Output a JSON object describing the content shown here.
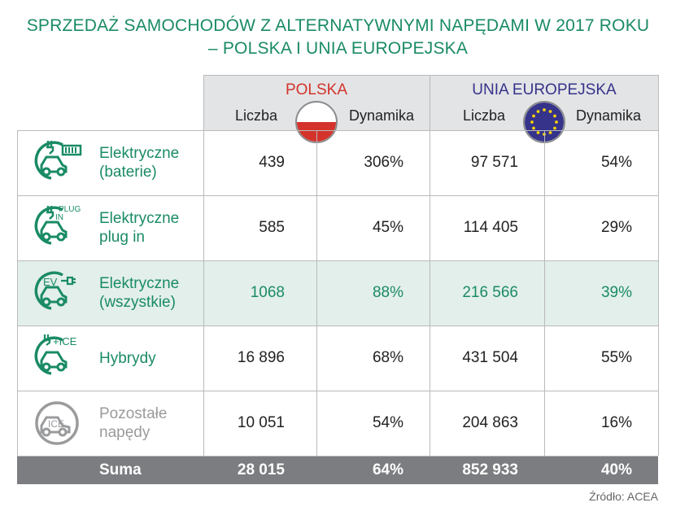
{
  "title_line1": "SPRZEDAŻ SAMOCHODÓW Z ALTERNATYWNYMI NAPĘDAMI W 2017 ROKU",
  "title_line2": "– POLSKA I UNIA EUROPEJSKA",
  "header": {
    "polska": "POLSKA",
    "ue": "UNIA EUROPEJSKA",
    "liczba": "Liczba",
    "dynamika": "Dynamika"
  },
  "icons": {
    "elektryczne_baterie": "car-battery-plug-icon",
    "elektryczne_plug_in": "car-plug-in-icon",
    "elektryczne_wszystkie": "car-ev-icon",
    "hybrydy": "car-plus-ice-icon",
    "pozostale": "car-ice-icon"
  },
  "badges": {
    "plug_in": "PLUG\nIN",
    "ev": "EV",
    "ice_plus": "+ICE",
    "ice": "ICE"
  },
  "colors": {
    "accent_green": "#1a8b64",
    "polska_red": "#d3332b",
    "eu_blue": "#35338a",
    "sum_grey": "#7c7d80",
    "highlight": "#e3efea"
  },
  "chart_data": {
    "type": "table",
    "title": "SPRZEDAŻ SAMOCHODÓW Z ALTERNATYWNYMI NAPĘDAMI W 2017 ROKU – POLSKA I UNIA EUROPEJSKA",
    "column_groups": [
      "POLSKA",
      "UNIA EUROPEJSKA"
    ],
    "columns": [
      "Liczba",
      "Dynamika",
      "Liczba",
      "Dynamika"
    ],
    "rows": [
      {
        "label_1": "Elektryczne",
        "label_2": "(baterie)",
        "pl_liczba": "439",
        "pl_dynamika": "306%",
        "ue_liczba": "97 571",
        "ue_dynamika": "54%"
      },
      {
        "label_1": "Elektryczne",
        "label_2": "plug in",
        "pl_liczba": "585",
        "pl_dynamika": "45%",
        "ue_liczba": "114 405",
        "ue_dynamika": "29%"
      },
      {
        "label_1": "Elektryczne",
        "label_2": "(wszystkie)",
        "pl_liczba": "1068",
        "pl_dynamika": "88%",
        "ue_liczba": "216 566",
        "ue_dynamika": "39%"
      },
      {
        "label_1": "Hybrydy",
        "label_2": "",
        "pl_liczba": "16 896",
        "pl_dynamika": "68%",
        "ue_liczba": "431 504",
        "ue_dynamika": "55%"
      },
      {
        "label_1": "Pozostałe",
        "label_2": "napędy",
        "pl_liczba": "10 051",
        "pl_dynamika": "54%",
        "ue_liczba": "204 863",
        "ue_dynamika": "16%"
      }
    ],
    "total": {
      "label": "Suma",
      "pl_liczba": "28 015",
      "pl_dynamika": "64%",
      "ue_liczba": "852 933",
      "ue_dynamika": "40%"
    }
  },
  "source": "Źródło: ACEA"
}
